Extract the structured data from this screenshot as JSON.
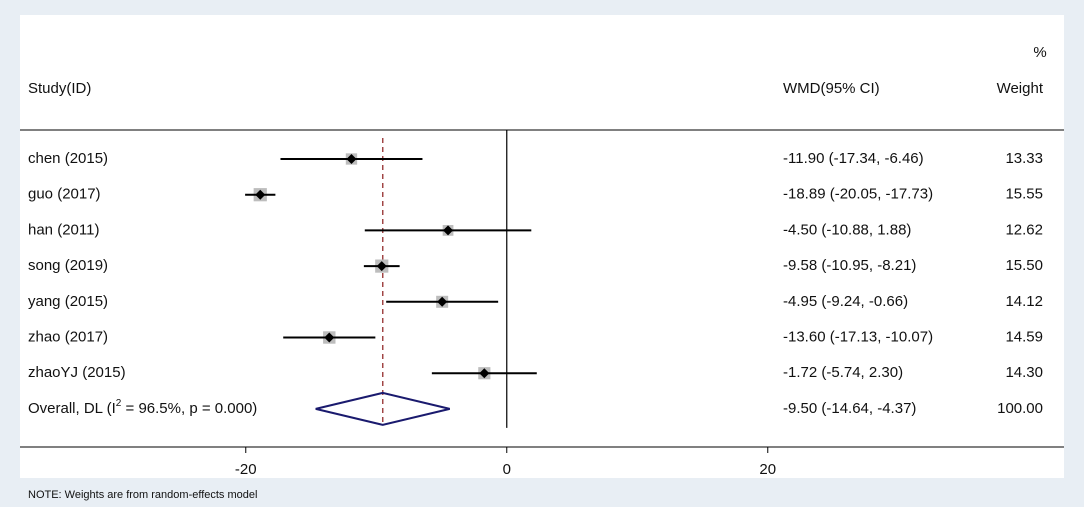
{
  "chart_data": {
    "type": "forest",
    "header": {
      "study": "Study(ID)",
      "effect": "WMD(95% CI)",
      "weight_unit": "%",
      "weight": "Weight"
    },
    "categories": [
      "chen (2015)",
      "guo (2017)",
      "han (2011)",
      "song (2019)",
      "yang (2015)",
      "zhao (2017)",
      "zhaoYJ (2015)"
    ],
    "values": [
      -11.9,
      -18.89,
      -4.5,
      -9.58,
      -4.95,
      -13.6,
      -1.72
    ],
    "lower": [
      -17.34,
      -20.05,
      -10.88,
      -10.95,
      -9.24,
      -17.13,
      -5.74
    ],
    "upper": [
      -6.46,
      -17.73,
      1.88,
      -8.21,
      -0.66,
      -10.07,
      2.3
    ],
    "value_labels": [
      "-11.90 (-17.34, -6.46)",
      "-18.89 (-20.05, -17.73)",
      "-4.50 (-10.88, 1.88)",
      "-9.58 (-10.95, -8.21)",
      "-4.95 (-9.24, -0.66)",
      "-13.60 (-17.13, -10.07)",
      "-1.72 (-5.74, 2.30)"
    ],
    "weights": [
      13.33,
      15.55,
      12.62,
      15.5,
      14.12,
      14.59,
      14.3
    ],
    "weight_labels": [
      "13.33",
      "15.55",
      "12.62",
      "15.50",
      "14.12",
      "14.59",
      "14.30"
    ],
    "overall": {
      "label_parts": [
        "Overall, DL (I",
        "2",
        " = 96.5%, p = 0.000)"
      ],
      "value": -9.5,
      "lower": -14.64,
      "upper": -4.37,
      "value_label": "-9.50 (-14.64, -4.37)",
      "weight": 100,
      "weight_label": "100.00"
    },
    "xlim": [
      -37.3,
      42.7
    ],
    "xticks": [
      -20,
      0,
      20
    ],
    "note": "NOTE: Weights are from random-effects model",
    "box_color": "#bdbdbd",
    "ci_color": "#000000",
    "diamond_color": "#1a1a6e",
    "reference_color": "#8b1a1a"
  }
}
